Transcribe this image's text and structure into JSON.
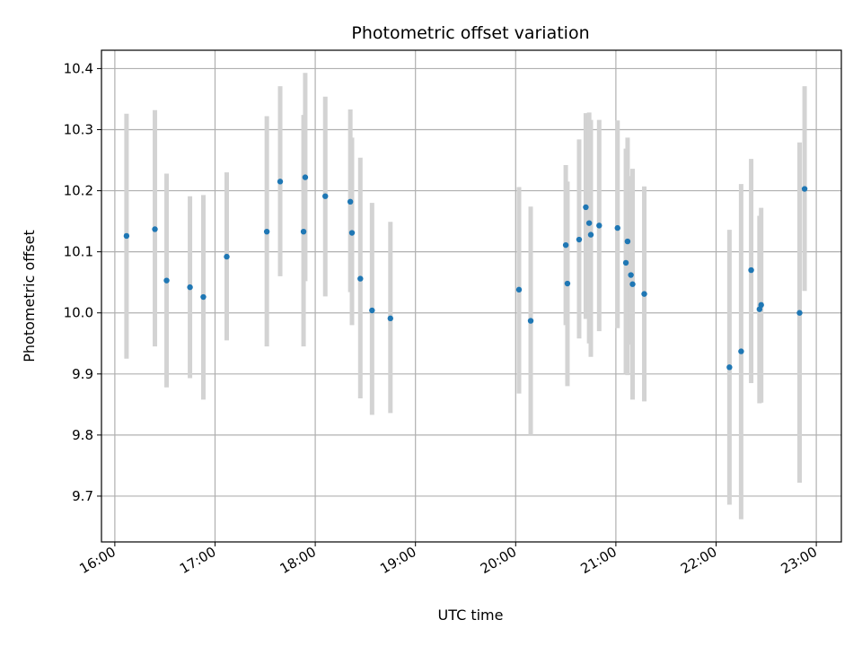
{
  "chart_data": {
    "type": "scatter",
    "title": "Photometric offset variation",
    "xlabel": "UTC time",
    "ylabel": "Photometric offset",
    "xlim": [
      "15:52",
      "23:15"
    ],
    "ylim": [
      9.625,
      10.43
    ],
    "grid": true,
    "x_ticks": [
      "16:00",
      "17:00",
      "18:00",
      "19:00",
      "20:00",
      "21:00",
      "22:00",
      "23:00"
    ],
    "y_ticks": [
      "9.7",
      "9.8",
      "9.9",
      "10.0",
      "10.1",
      "10.2",
      "10.3",
      "10.4"
    ],
    "colors": {
      "point": "#1f77b4",
      "errorbar": "#d3d3d3"
    },
    "series": [
      {
        "x": [
          "16:07",
          "16:24",
          "16:31",
          "16:45",
          "16:53",
          "17:07",
          "17:31",
          "17:39",
          "17:53",
          "17:54",
          "18:06",
          "18:21",
          "18:22",
          "18:27",
          "18:34",
          "18:45",
          "20:02",
          "20:09",
          "20:30",
          "20:31",
          "20:38",
          "20:42",
          "20:44",
          "20:45",
          "20:50",
          "21:01",
          "21:06",
          "21:07",
          "21:09",
          "21:10",
          "21:17",
          "22:08",
          "22:15",
          "22:21",
          "22:26",
          "22:27",
          "22:50",
          "22:53"
        ],
        "y": [
          10.126,
          10.137,
          10.053,
          10.042,
          10.026,
          10.092,
          10.133,
          10.215,
          10.133,
          10.222,
          10.191,
          10.182,
          10.131,
          10.056,
          10.004,
          9.991,
          10.038,
          9.987,
          10.111,
          10.048,
          10.12,
          10.173,
          10.147,
          10.128,
          10.143,
          10.139,
          10.082,
          10.117,
          10.062,
          10.047,
          10.031,
          9.911,
          9.937,
          10.07,
          10.006,
          10.013,
          10.0,
          10.203
        ],
        "err_low": [
          9.925,
          9.945,
          9.878,
          9.893,
          9.858,
          9.955,
          9.945,
          10.06,
          9.945,
          10.052,
          10.027,
          10.034,
          9.98,
          9.86,
          9.833,
          9.836,
          9.868,
          9.8,
          9.98,
          9.88,
          9.958,
          9.99,
          9.95,
          9.928,
          9.97,
          9.975,
          9.9,
          9.898,
          9.948,
          9.858,
          9.855,
          9.686,
          9.662,
          9.885,
          9.852,
          9.853,
          9.722,
          10.036
        ],
        "err_high": [
          10.326,
          10.332,
          10.228,
          10.191,
          10.193,
          10.23,
          10.322,
          10.371,
          10.324,
          10.393,
          10.354,
          10.333,
          10.287,
          10.254,
          10.18,
          10.149,
          10.206,
          10.174,
          10.242,
          10.215,
          10.284,
          10.327,
          10.328,
          10.316,
          10.316,
          10.315,
          10.269,
          10.287,
          10.224,
          10.236,
          10.207,
          10.136,
          10.211,
          10.252,
          10.159,
          10.172,
          10.279,
          10.371
        ]
      }
    ]
  }
}
